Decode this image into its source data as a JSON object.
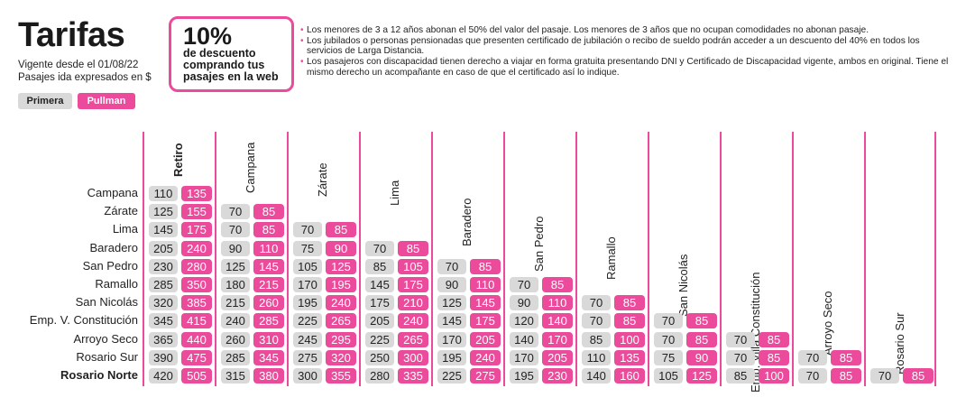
{
  "header": {
    "title": "Tarifas",
    "valid_from": "Vigente desde el 01/08/22",
    "currency_note": "Pasajes ida expresados en $"
  },
  "tabs": [
    {
      "label": "Primera"
    },
    {
      "label": "Pullman"
    }
  ],
  "promo": {
    "percent": "10%",
    "text": "de descuento comprando tus pasajes en la web"
  },
  "notes": [
    "Los menores de 3 a 12 años abonan el 50% del valor del pasaje. Los menores de 3 años que no ocupan comodidades no abonan pasaje.",
    "Los jubilados o personas pensionadas que presenten certificado de jubilación o recibo de sueldo podrán acceder a un descuento del 40% en todos los servicios de Larga Distancia.",
    "Los pasajeros con discapacidad tienen derecho a viajar en forma gratuita presentando DNI y Certificado de Discapacidad vigente, ambos en original. Tiene el mismo derecho un acompañante en caso de que el certificado así lo indique."
  ],
  "colors": {
    "accent": "#ec4a9b",
    "primera": "#d9d9d9"
  },
  "table": {
    "columns": [
      "Retiro",
      "Campana",
      "Zárate",
      "Lima",
      "Baradero",
      "San Pedro",
      "Ramallo",
      "San Nicolás",
      "Emp. Villa Constitución",
      "Arroyo Seco",
      "Rosario Sur"
    ],
    "rows": [
      {
        "label": "Campana",
        "prices": [
          [
            "110",
            "135"
          ]
        ]
      },
      {
        "label": "Zárate",
        "prices": [
          [
            "125",
            "155"
          ],
          [
            "70",
            "85"
          ]
        ]
      },
      {
        "label": "Lima",
        "prices": [
          [
            "145",
            "175"
          ],
          [
            "70",
            "85"
          ],
          [
            "70",
            "85"
          ]
        ]
      },
      {
        "label": "Baradero",
        "prices": [
          [
            "205",
            "240"
          ],
          [
            "90",
            "110"
          ],
          [
            "75",
            "90"
          ],
          [
            "70",
            "85"
          ]
        ]
      },
      {
        "label": "San Pedro",
        "prices": [
          [
            "230",
            "280"
          ],
          [
            "125",
            "145"
          ],
          [
            "105",
            "125"
          ],
          [
            "85",
            "105"
          ],
          [
            "70",
            "85"
          ]
        ]
      },
      {
        "label": "Ramallo",
        "prices": [
          [
            "285",
            "350"
          ],
          [
            "180",
            "215"
          ],
          [
            "170",
            "195"
          ],
          [
            "145",
            "175"
          ],
          [
            "90",
            "110"
          ],
          [
            "70",
            "85"
          ]
        ]
      },
      {
        "label": "San Nicolás",
        "prices": [
          [
            "320",
            "385"
          ],
          [
            "215",
            "260"
          ],
          [
            "195",
            "240"
          ],
          [
            "175",
            "210"
          ],
          [
            "125",
            "145"
          ],
          [
            "90",
            "110"
          ],
          [
            "70",
            "85"
          ]
        ]
      },
      {
        "label": "Emp. V. Constitución",
        "prices": [
          [
            "345",
            "415"
          ],
          [
            "240",
            "285"
          ],
          [
            "225",
            "265"
          ],
          [
            "205",
            "240"
          ],
          [
            "145",
            "175"
          ],
          [
            "120",
            "140"
          ],
          [
            "70",
            "85"
          ],
          [
            "70",
            "85"
          ]
        ]
      },
      {
        "label": "Arroyo Seco",
        "prices": [
          [
            "365",
            "440"
          ],
          [
            "260",
            "310"
          ],
          [
            "245",
            "295"
          ],
          [
            "225",
            "265"
          ],
          [
            "170",
            "205"
          ],
          [
            "140",
            "170"
          ],
          [
            "85",
            "100"
          ],
          [
            "70",
            "85"
          ],
          [
            "70",
            "85"
          ]
        ]
      },
      {
        "label": "Rosario Sur",
        "prices": [
          [
            "390",
            "475"
          ],
          [
            "285",
            "345"
          ],
          [
            "275",
            "320"
          ],
          [
            "250",
            "300"
          ],
          [
            "195",
            "240"
          ],
          [
            "170",
            "205"
          ],
          [
            "110",
            "135"
          ],
          [
            "75",
            "90"
          ],
          [
            "70",
            "85"
          ],
          [
            "70",
            "85"
          ]
        ]
      },
      {
        "label": "Rosario Norte",
        "prices": [
          [
            "420",
            "505"
          ],
          [
            "315",
            "380"
          ],
          [
            "300",
            "355"
          ],
          [
            "280",
            "335"
          ],
          [
            "225",
            "275"
          ],
          [
            "195",
            "230"
          ],
          [
            "140",
            "160"
          ],
          [
            "105",
            "125"
          ],
          [
            "85",
            "100"
          ],
          [
            "70",
            "85"
          ],
          [
            "70",
            "85"
          ]
        ]
      }
    ]
  }
}
